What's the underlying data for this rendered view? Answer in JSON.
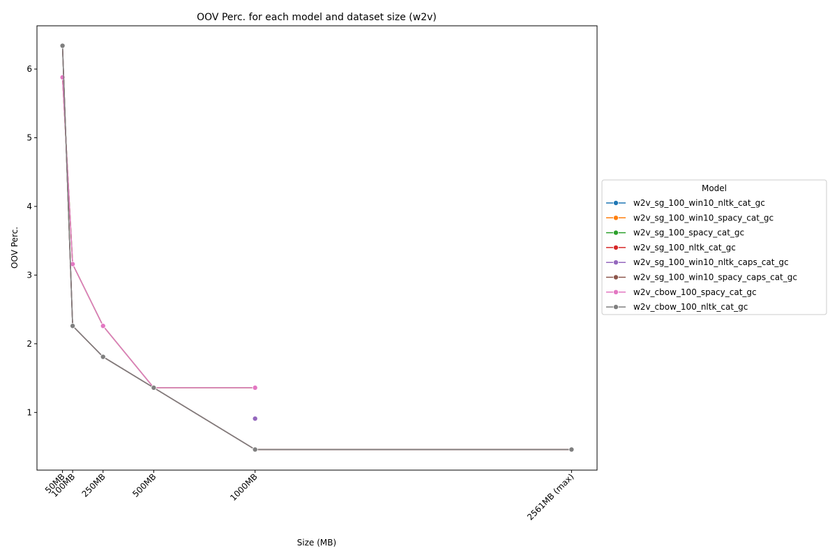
{
  "chart_data": {
    "type": "line",
    "title": "OOV Perc. for each model and dataset size (w2v)",
    "xlabel": "Size (MB)",
    "ylabel": "OOV Perc.",
    "x_ticks": [
      {
        "value": 50,
        "label": "50MB"
      },
      {
        "value": 100,
        "label": "100MB"
      },
      {
        "value": 250,
        "label": "250MB"
      },
      {
        "value": 500,
        "label": "500MB"
      },
      {
        "value": 1000,
        "label": "1000MB"
      },
      {
        "value": 2561,
        "label": "2561MB (max)"
      }
    ],
    "y_ticks": [
      1,
      2,
      3,
      4,
      5,
      6
    ],
    "xlim": [
      -76,
      2687
    ],
    "ylim": [
      0.16,
      6.63
    ],
    "grid": false,
    "legend": {
      "title": "Model",
      "placement": "center-right-outside"
    },
    "series": [
      {
        "name": "w2v_sg_100_win10_nltk_cat_gc",
        "color": "#1f77b4",
        "points": [
          [
            50,
            6.34
          ],
          [
            100,
            2.26
          ],
          [
            250,
            1.81
          ],
          [
            500,
            1.36
          ],
          [
            1000,
            0.46
          ],
          [
            2561,
            0.46
          ]
        ]
      },
      {
        "name": "w2v_sg_100_win10_spacy_cat_gc",
        "color": "#ff7f0e",
        "points": [
          [
            50,
            5.88
          ],
          [
            100,
            3.16
          ],
          [
            250,
            2.26
          ],
          [
            500,
            1.36
          ],
          [
            1000,
            1.36
          ]
        ]
      },
      {
        "name": "w2v_sg_100_spacy_cat_gc",
        "color": "#2ca02c",
        "points": [
          [
            50,
            5.88
          ],
          [
            100,
            3.16
          ],
          [
            250,
            2.26
          ],
          [
            500,
            1.36
          ],
          [
            1000,
            1.36
          ]
        ]
      },
      {
        "name": "w2v_sg_100_nltk_cat_gc",
        "color": "#d62728",
        "points": [
          [
            50,
            6.34
          ],
          [
            100,
            2.26
          ],
          [
            250,
            1.81
          ],
          [
            500,
            1.36
          ],
          [
            1000,
            0.46
          ],
          [
            2561,
            0.46
          ]
        ]
      },
      {
        "name": "w2v_sg_100_win10_nltk_caps_cat_gc",
        "color": "#9467bd",
        "points": [
          [
            1000,
            0.91
          ]
        ]
      },
      {
        "name": "w2v_sg_100_win10_spacy_caps_cat_gc",
        "color": "#8c564b",
        "points": [
          [
            50,
            6.34
          ],
          [
            100,
            2.26
          ],
          [
            250,
            1.81
          ],
          [
            500,
            1.36
          ],
          [
            1000,
            0.46
          ],
          [
            2561,
            0.46
          ]
        ]
      },
      {
        "name": "w2v_cbow_100_spacy_cat_gc",
        "color": "#e377c2",
        "points": [
          [
            50,
            5.88
          ],
          [
            100,
            3.16
          ],
          [
            250,
            2.26
          ],
          [
            500,
            1.36
          ],
          [
            1000,
            1.36
          ]
        ]
      },
      {
        "name": "w2v_cbow_100_nltk_cat_gc",
        "color": "#7f7f7f",
        "points": [
          [
            50,
            6.34
          ],
          [
            100,
            2.26
          ],
          [
            250,
            1.81
          ],
          [
            500,
            1.36
          ],
          [
            1000,
            0.46
          ],
          [
            2561,
            0.46
          ]
        ]
      }
    ]
  }
}
